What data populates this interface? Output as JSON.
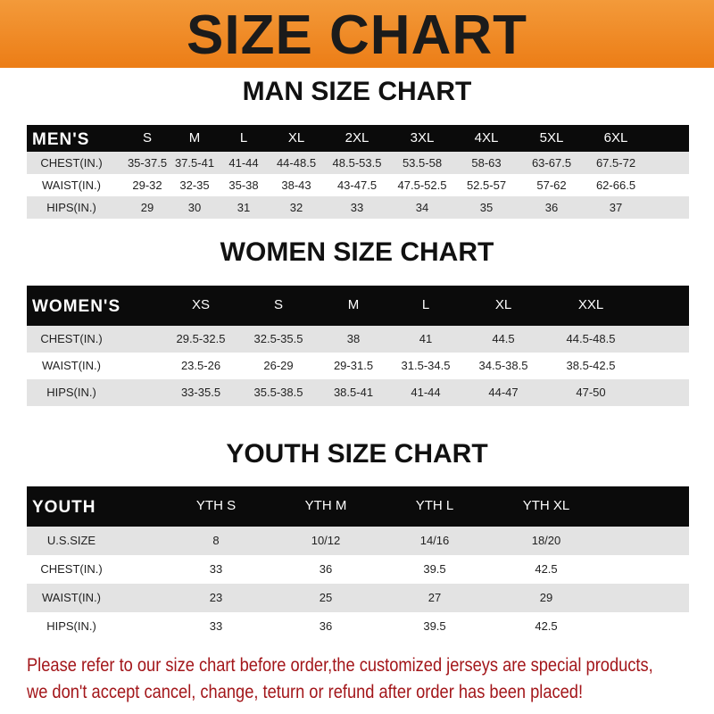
{
  "banner": {
    "title": "SIZE CHART",
    "background_color": "#ef8a22"
  },
  "men": {
    "title": "MAN SIZE CHART",
    "header": [
      "MEN'S",
      "S",
      "M",
      "L",
      "XL",
      "2XL",
      "3XL",
      "4XL",
      "5XL",
      "6XL"
    ],
    "rows": [
      [
        "CHEST(IN.)",
        "35-37.5",
        "37.5-41",
        "41-44",
        "44-48.5",
        "48.5-53.5",
        "53.5-58",
        "58-63",
        "63-67.5",
        "67.5-72"
      ],
      [
        "WAIST(IN.)",
        "29-32",
        "32-35",
        "35-38",
        "38-43",
        "43-47.5",
        "47.5-52.5",
        "52.5-57",
        "57-62",
        "62-66.5"
      ],
      [
        "HIPS(IN.)",
        "29",
        "30",
        "31",
        "32",
        "33",
        "34",
        "35",
        "36",
        "37"
      ]
    ]
  },
  "women": {
    "title": "WOMEN SIZE CHART",
    "header": [
      "WOMEN'S",
      "XS",
      "S",
      "M",
      "L",
      "XL",
      "XXL"
    ],
    "rows": [
      [
        "CHEST(IN.)",
        "29.5-32.5",
        "32.5-35.5",
        "38",
        "41",
        "44.5",
        "44.5-48.5"
      ],
      [
        "WAIST(IN.)",
        "23.5-26",
        "26-29",
        "29-31.5",
        "31.5-34.5",
        "34.5-38.5",
        "38.5-42.5"
      ],
      [
        "HIPS(IN.)",
        "33-35.5",
        "35.5-38.5",
        "38.5-41",
        "41-44",
        "44-47",
        "47-50"
      ]
    ]
  },
  "youth": {
    "title": "YOUTH SIZE CHART",
    "header": [
      "YOUTH",
      "YTH S",
      "YTH M",
      "YTH L",
      "YTH XL"
    ],
    "rows": [
      [
        "U.S.SIZE",
        "8",
        "10/12",
        "14/16",
        "18/20"
      ],
      [
        "CHEST(IN.)",
        "33",
        "36",
        "39.5",
        "42.5"
      ],
      [
        "WAIST(IN.)",
        "23",
        "25",
        "27",
        "29"
      ],
      [
        "HIPS(IN.)",
        "33",
        "36",
        "39.5",
        "42.5"
      ]
    ]
  },
  "notice": {
    "line1": "Please refer to our size chart before order,the customized jerseys are special products,",
    "line2": "we don't accept cancel, change, teturn or refund after order has been placed!",
    "color": "#a3161a"
  }
}
